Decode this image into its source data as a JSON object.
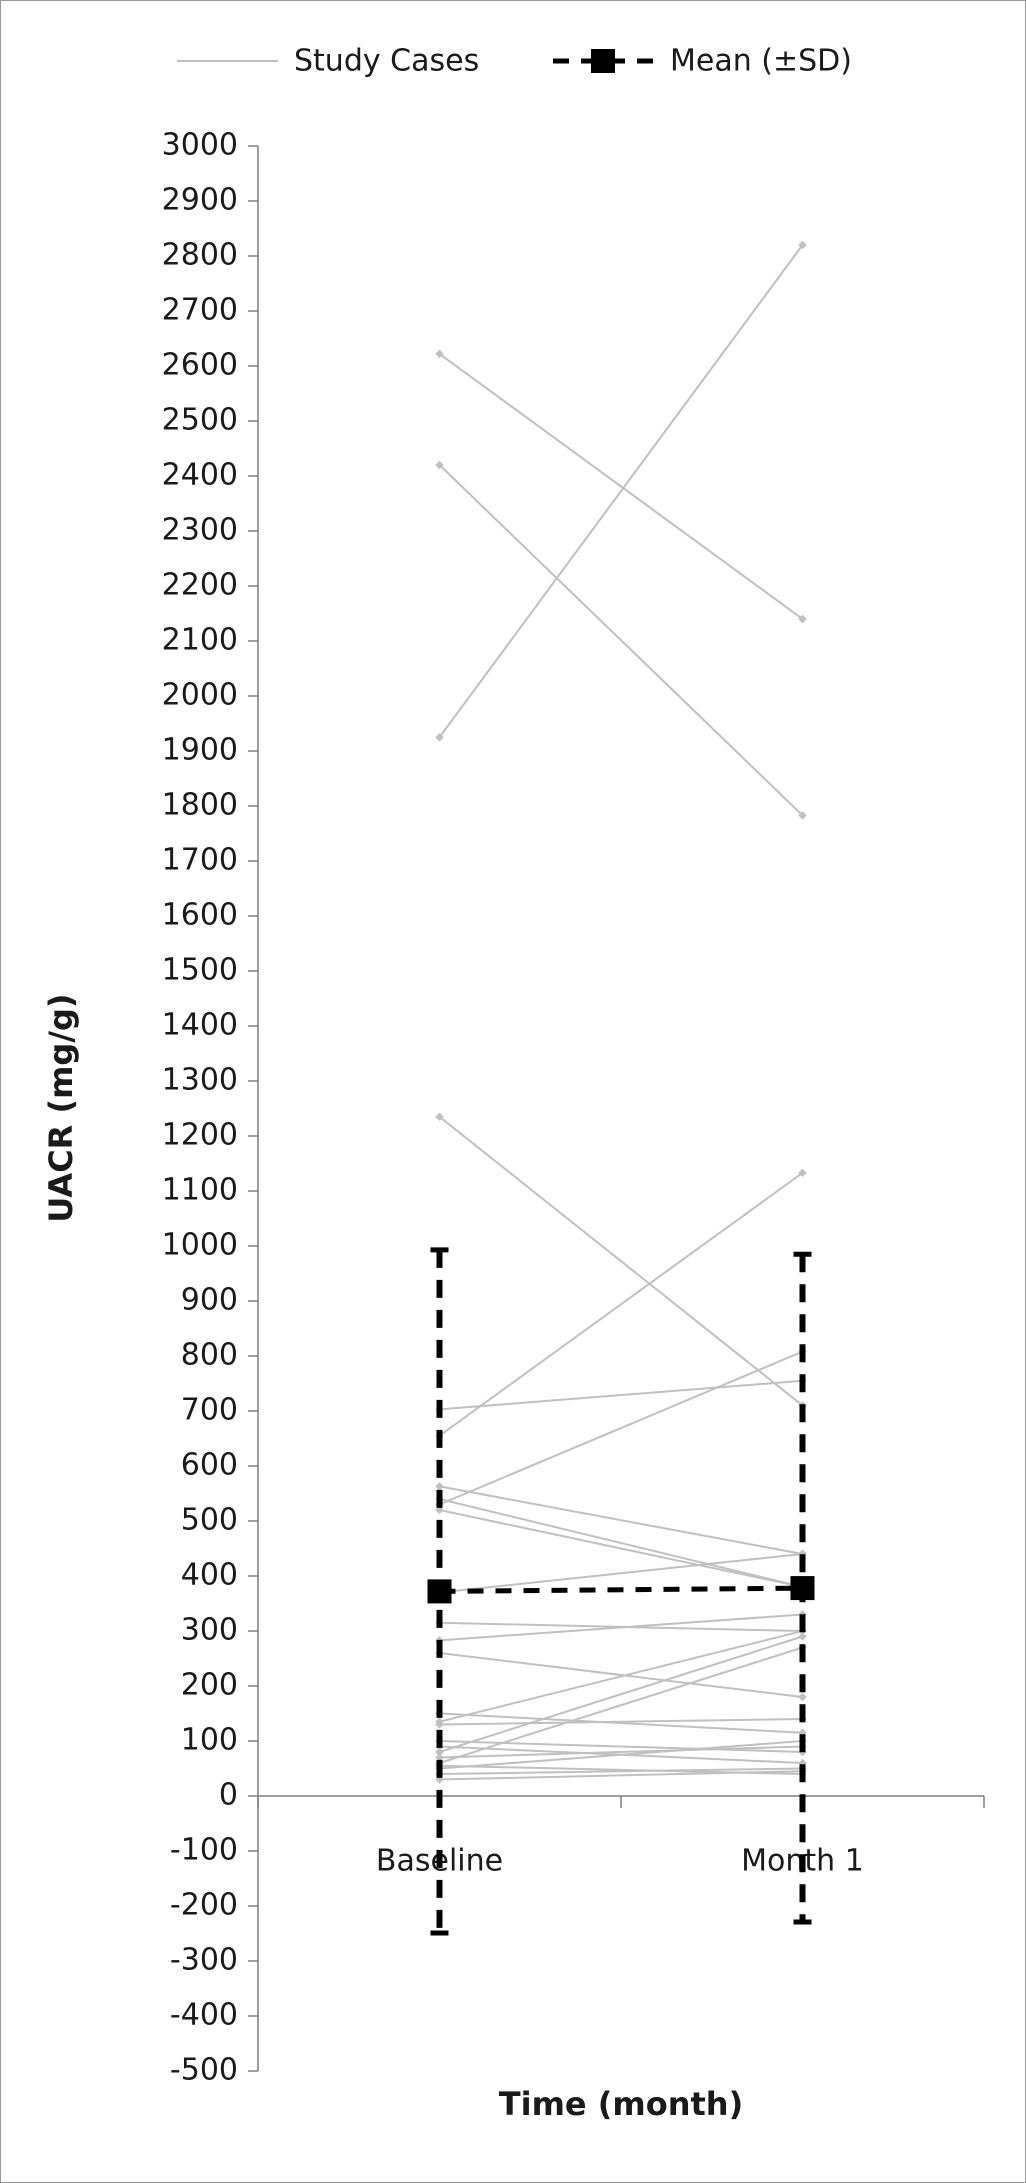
{
  "chart_data": {
    "type": "line",
    "x_label": "Time (month)",
    "y_label": "UACR (mg/g)",
    "categories": [
      "Baseline",
      "Month 1"
    ],
    "ylim": [
      -500,
      3000
    ],
    "yticks": [
      -500,
      -400,
      -300,
      -200,
      -100,
      0,
      100,
      200,
      300,
      400,
      500,
      600,
      700,
      800,
      900,
      1000,
      1100,
      1200,
      1300,
      1400,
      1500,
      1600,
      1700,
      1800,
      1900,
      2000,
      2100,
      2200,
      2300,
      2400,
      2500,
      2600,
      2700,
      2800,
      2900,
      3000
    ],
    "series": [
      {
        "name": "Study Cases",
        "color": "#c0c0c0",
        "lines": [
          [
            2622,
            2140
          ],
          [
            2420,
            1783
          ],
          [
            1925,
            2820
          ],
          [
            1235,
            710
          ],
          [
            655,
            1133
          ],
          [
            703,
            755
          ],
          [
            530,
            808
          ],
          [
            563,
            440
          ],
          [
            540,
            380
          ],
          [
            520,
            380
          ],
          [
            370,
            440
          ],
          [
            315,
            300
          ],
          [
            283,
            330
          ],
          [
            260,
            180
          ],
          [
            150,
            115
          ],
          [
            135,
            300
          ],
          [
            130,
            140
          ],
          [
            80,
            290
          ],
          [
            60,
            270
          ],
          [
            100,
            80
          ],
          [
            50,
            100
          ],
          [
            40,
            50
          ],
          [
            90,
            60
          ],
          [
            30,
            45
          ],
          [
            70,
            90
          ],
          [
            55,
            40
          ]
        ]
      },
      {
        "name": "Mean (±SD)",
        "color": "#000000",
        "values": [
          372,
          378
        ],
        "errors": [
          621,
          607
        ]
      }
    ]
  }
}
